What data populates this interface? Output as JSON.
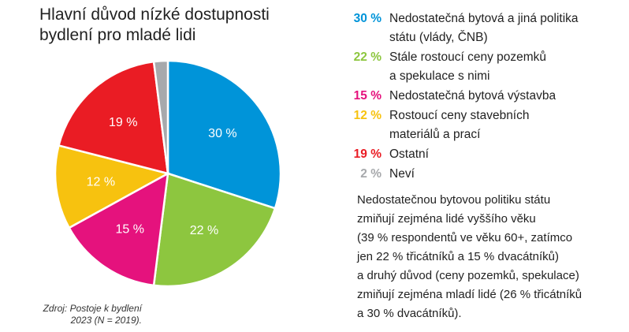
{
  "title": {
    "line1": "Hlavní důvod nízké dostupnosti",
    "line2": "bydlení pro mladé lidi"
  },
  "source": {
    "line1": "Zdroj: Postoje k bydlení",
    "line2": "2023 (N = 2019)."
  },
  "chart_data": {
    "type": "pie",
    "slices": [
      {
        "value": 30,
        "label": "30 %",
        "color": "#0094d9",
        "legend": [
          "Nedostatečná bytová a jiná politika",
          "státu (vlády, ČNB)"
        ]
      },
      {
        "value": 22,
        "label": "22 %",
        "color": "#8dc63f",
        "legend": [
          "Stále rostoucí ceny pozemků",
          "a spekulace s nimi"
        ]
      },
      {
        "value": 15,
        "label": "15 %",
        "color": "#e5127d",
        "legend": [
          "Nedostatečná bytová výstavba"
        ]
      },
      {
        "value": 12,
        "label": "12 %",
        "color": "#f7c20f",
        "legend": [
          "Rostoucí ceny stavebních",
          "materiálů a prací"
        ]
      },
      {
        "value": 19,
        "label": "19 %",
        "color": "#ea1c24",
        "legend": [
          "Ostatní"
        ]
      },
      {
        "value": 2,
        "label": "2 %",
        "color": "#a7a9ac",
        "legend": [
          "Neví"
        ]
      }
    ]
  },
  "note": {
    "lines": [
      "Nedostatečnou bytovou politiku státu",
      "zmiňují zejména lidé vyššího věku",
      "(39 % respondentů ve věku 60+, zatímco",
      "jen 22 % třicátníků a 15 % dvacátníků)",
      "a druhý důvod (ceny pozemků, spekulace)",
      "zmiňují zejména mladí lidé (26 % třicátníků",
      "a 30 % dvacátníků)."
    ]
  }
}
